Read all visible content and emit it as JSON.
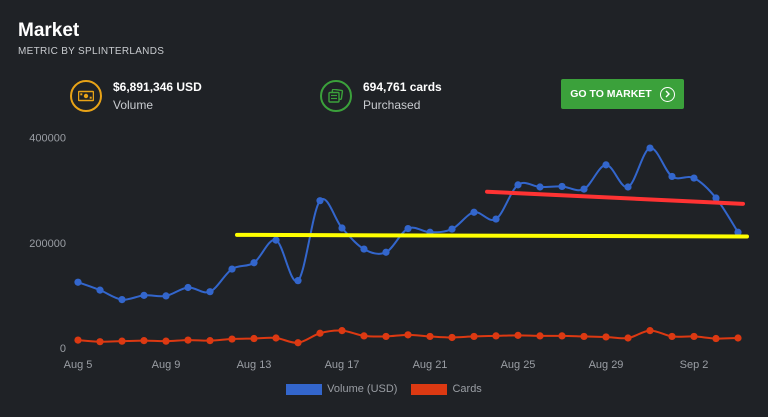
{
  "header": {
    "title": "Market",
    "subtitle": "METRIC BY SPLINTERLANDS"
  },
  "stats": {
    "volume": {
      "value": "$6,891,346 USD",
      "label": "Volume",
      "icon": "money-icon",
      "color": "#e8a317"
    },
    "cards": {
      "value": "694,761 cards",
      "label": "Purchased",
      "icon": "cards-icon",
      "color": "#3ba13b"
    }
  },
  "actions": {
    "go_market_label": "GO TO MARKET"
  },
  "chart_data": {
    "type": "line",
    "x": [
      "Aug 5",
      "Aug 6",
      "Aug 7",
      "Aug 8",
      "Aug 9",
      "Aug 10",
      "Aug 11",
      "Aug 12",
      "Aug 13",
      "Aug 14",
      "Aug 15",
      "Aug 16",
      "Aug 17",
      "Aug 18",
      "Aug 19",
      "Aug 20",
      "Aug 21",
      "Aug 22",
      "Aug 23",
      "Aug 24",
      "Aug 25",
      "Aug 26",
      "Aug 27",
      "Aug 28",
      "Aug 29",
      "Aug 30",
      "Aug 31",
      "Sep 1",
      "Sep 2",
      "Sep 3",
      "Sep 4"
    ],
    "x_tick_labels": [
      "Aug 5",
      "Aug 9",
      "Aug 13",
      "Aug 17",
      "Aug 21",
      "Aug 25",
      "Aug 29",
      "Sep 2"
    ],
    "y_tick_labels": [
      "0",
      "200000",
      "400000"
    ],
    "ylim": [
      0,
      420000
    ],
    "grid": false,
    "legend_position": "bottom",
    "series": [
      {
        "name": "Volume (USD)",
        "color": "#3366cc",
        "values": [
          125000,
          110000,
          92000,
          100000,
          99000,
          115000,
          107000,
          150000,
          162000,
          205000,
          128000,
          280000,
          228000,
          188000,
          182000,
          227000,
          220000,
          226000,
          258000,
          245000,
          310000,
          306000,
          307000,
          302000,
          348000,
          306000,
          380000,
          326000,
          323000,
          285000,
          220000
        ]
      },
      {
        "name": "Cards",
        "color": "#dc3912",
        "values": [
          15000,
          12000,
          13000,
          14000,
          13000,
          15000,
          14000,
          17000,
          18000,
          19000,
          10000,
          28000,
          33000,
          23000,
          22000,
          25000,
          22000,
          20000,
          22000,
          23000,
          24000,
          23000,
          23000,
          22000,
          21000,
          19000,
          33000,
          22000,
          22000,
          18000,
          19000
        ]
      }
    ],
    "annotations": [
      {
        "type": "line",
        "color": "#ffff00",
        "from": {
          "x": "Aug 13",
          "y": 215000
        },
        "to": {
          "x": "Sep 4",
          "y": 212000
        }
      },
      {
        "type": "line",
        "color": "#ff3333",
        "from": {
          "x": "Aug 24",
          "y": 297000
        },
        "to": {
          "x": "Sep 4",
          "y": 274000
        }
      }
    ]
  }
}
